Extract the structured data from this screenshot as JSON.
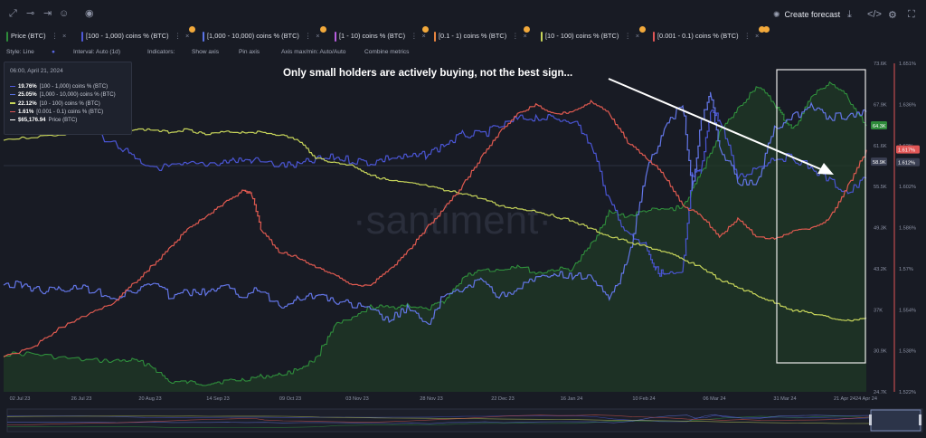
{
  "toolbar_top": {
    "icons": [
      "brush-icon",
      "line-icon",
      "emoji-icon",
      "eye-icon"
    ],
    "create_forecast": "Create forecast",
    "right_icons": [
      "download-icon",
      "code-icon",
      "gear-icon",
      "expand-icon"
    ]
  },
  "metrics": [
    {
      "label": "Price (BTC)",
      "color": "#2e8b3a"
    },
    {
      "label": "[100 - 1,000) coins % (BTC)",
      "color": "#4f59d8"
    },
    {
      "label": "[1,000 - 10,000) coins % (BTC)",
      "color": "#5b74e8"
    },
    {
      "label": "[1 - 10) coins % (BTC)",
      "color": "#b85ee0"
    },
    {
      "label": "[0.1 - 1) coins % (BTC)",
      "color": "#e8853f"
    },
    {
      "label": "[10 - 100) coins % (BTC)",
      "color": "#c8d65a"
    },
    {
      "label": "[0.001 - 0.1) coins % (BTC)",
      "color": "#e05656"
    }
  ],
  "options": {
    "style": "Style: Line",
    "interval": "Interval: Auto (1d)",
    "indicators": "Indicators:",
    "show_axis": "Show axis",
    "pin_axis": "Pin axis",
    "axis_minmax": "Axis max/min: Auto/Auto",
    "combine": "Combine metrics"
  },
  "tooltip": {
    "date": "06:00, April 21, 2024",
    "rows": [
      {
        "value": "19.76%",
        "label": "[100 - 1,000) coins % (BTC)",
        "color": "#4f59d8"
      },
      {
        "value": "25.05%",
        "label": "[1,000 - 10,000) coins % (BTC)",
        "color": "#5b74e8"
      },
      {
        "value": "22.12%",
        "label": "[10 - 100) coins % (BTC)",
        "color": "#c8d65a"
      },
      {
        "value": "1.61%",
        "label": "[0.001 - 0.1) coins % (BTC)",
        "color": "#e05656"
      },
      {
        "value": "$65,176.94",
        "label": "Price (BTC)",
        "color": "#ffffff"
      }
    ]
  },
  "annotation": "Only small holders are actively buying, not the best sign...",
  "watermark": "·santiment·",
  "chart_data": {
    "type": "line",
    "x_labels": [
      "02 Jul 23",
      "26 Jul 23",
      "20 Aug 23",
      "14 Sep 23",
      "09 Oct 23",
      "03 Nov 23",
      "28 Nov 23",
      "22 Dec 23",
      "16 Jan 24",
      "10 Feb 24",
      "06 Mar 24",
      "31 Mar 24",
      "21 Apr 24",
      "24 Apr 24"
    ],
    "price_axis": {
      "ticks": [
        "73.6K",
        "67.9K",
        "61.6K",
        "55.5K",
        "49.3K",
        "43.2K",
        "37K",
        "30.9K",
        "24.7K"
      ],
      "min": 24.7,
      "max": 73.6
    },
    "pct_axis": {
      "ticks": [
        "1.651%",
        "1.636%",
        "1.62%",
        "1.602%",
        "1.586%",
        "1.57%",
        "1.554%",
        "1.538%",
        "1.522%"
      ],
      "min": 1.522,
      "max": 1.651
    },
    "value_badges": [
      {
        "text": "64.3K",
        "axis": "price",
        "value": 64.3,
        "color": "#2e8b3a"
      },
      {
        "text": "58.9K",
        "axis": "price",
        "value": 58.9,
        "color": "#3a3f52"
      },
      {
        "text": "1.617%",
        "axis": "pct",
        "value": 1.617,
        "color": "#e05656"
      },
      {
        "text": "1.612%",
        "axis": "pct",
        "value": 1.612,
        "color": "#3a3f52"
      }
    ],
    "series": [
      {
        "name": "Price (BTC)",
        "color": "#2f8f3c",
        "fill": true,
        "points": [
          [
            0,
            30.3
          ],
          [
            3,
            30.4
          ],
          [
            6,
            29.8
          ],
          [
            9,
            29.4
          ],
          [
            12,
            29.3
          ],
          [
            14,
            29.4
          ],
          [
            16,
            28.7
          ],
          [
            18,
            26.2
          ],
          [
            20,
            26.1
          ],
          [
            22,
            25.9
          ],
          [
            24,
            26.3
          ],
          [
            26,
            26.5
          ],
          [
            28,
            27.0
          ],
          [
            30,
            27.2
          ],
          [
            32,
            28.0
          ],
          [
            34,
            29.6
          ],
          [
            36,
            34.6
          ],
          [
            38,
            35.5
          ],
          [
            40,
            37.4
          ],
          [
            42,
            37.2
          ],
          [
            44,
            37.7
          ],
          [
            46,
            36.9
          ],
          [
            48,
            38.2
          ],
          [
            50,
            41.6
          ],
          [
            52,
            43.0
          ],
          [
            54,
            42.8
          ],
          [
            56,
            43.6
          ],
          [
            58,
            42.3
          ],
          [
            60,
            42.9
          ],
          [
            62,
            43.0
          ],
          [
            64,
            46.7
          ],
          [
            66,
            51.5
          ],
          [
            68,
            50.8
          ],
          [
            70,
            51.7
          ],
          [
            72,
            51.8
          ],
          [
            74,
            52.2
          ],
          [
            76,
            57.3
          ],
          [
            78,
            63.4
          ],
          [
            80,
            66.8
          ],
          [
            82,
            70.3
          ],
          [
            84,
            67.6
          ],
          [
            85,
            65.4
          ],
          [
            86,
            63.7
          ],
          [
            88,
            68.6
          ],
          [
            90,
            70.8
          ],
          [
            92,
            68.4
          ],
          [
            94,
            64.3
          ]
        ]
      },
      {
        "name": "[100 - 1,000) coins % (BTC)",
        "color": "#4a55d4",
        "axis": "pct",
        "points": [
          [
            0,
            1.629
          ],
          [
            3,
            1.628
          ],
          [
            5,
            1.627
          ],
          [
            8,
            1.627
          ],
          [
            10,
            1.624
          ],
          [
            13,
            1.617
          ],
          [
            15,
            1.611
          ],
          [
            18,
            1.61
          ],
          [
            20,
            1.611
          ],
          [
            23,
            1.612
          ],
          [
            25,
            1.613
          ],
          [
            27,
            1.613
          ],
          [
            30,
            1.611
          ],
          [
            32,
            1.611
          ],
          [
            34,
            1.613
          ],
          [
            36,
            1.614
          ],
          [
            38,
            1.613
          ],
          [
            40,
            1.612
          ],
          [
            42,
            1.614
          ],
          [
            44,
            1.614
          ],
          [
            46,
            1.615
          ],
          [
            48,
            1.619
          ],
          [
            50,
            1.623
          ],
          [
            52,
            1.623
          ],
          [
            54,
            1.626
          ],
          [
            56,
            1.629
          ],
          [
            58,
            1.63
          ],
          [
            60,
            1.629
          ],
          [
            62,
            1.629
          ],
          [
            64,
            1.619
          ],
          [
            66,
            1.597
          ],
          [
            68,
            1.584
          ],
          [
            70,
            1.58
          ],
          [
            71,
            1.57
          ],
          [
            72,
            1.568
          ],
          [
            74,
            1.568
          ],
          [
            75,
            1.607
          ],
          [
            76,
            1.608
          ],
          [
            77,
            1.633
          ],
          [
            78,
            1.629
          ],
          [
            80,
            1.606
          ],
          [
            82,
            1.61
          ],
          [
            84,
            1.614
          ],
          [
            86,
            1.614
          ],
          [
            88,
            1.61
          ],
          [
            90,
            1.605
          ],
          [
            92,
            1.6
          ],
          [
            94,
            1.606
          ]
        ]
      },
      {
        "name": "[1,000 - 10,000) coins % (BTC)",
        "color": "#6376e8",
        "axis": "pct",
        "points": [
          [
            0,
            1.564
          ],
          [
            2,
            1.564
          ],
          [
            4,
            1.562
          ],
          [
            6,
            1.562
          ],
          [
            8,
            1.563
          ],
          [
            10,
            1.562
          ],
          [
            12,
            1.559
          ],
          [
            14,
            1.561
          ],
          [
            16,
            1.565
          ],
          [
            18,
            1.56
          ],
          [
            20,
            1.561
          ],
          [
            22,
            1.561
          ],
          [
            24,
            1.563
          ],
          [
            26,
            1.56
          ],
          [
            28,
            1.562
          ],
          [
            30,
            1.556
          ],
          [
            32,
            1.559
          ],
          [
            34,
            1.56
          ],
          [
            36,
            1.558
          ],
          [
            38,
            1.556
          ],
          [
            40,
            1.554
          ],
          [
            42,
            1.55
          ],
          [
            44,
            1.555
          ],
          [
            46,
            1.548
          ],
          [
            48,
            1.56
          ],
          [
            50,
            1.561
          ],
          [
            52,
            1.567
          ],
          [
            54,
            1.559
          ],
          [
            56,
            1.563
          ],
          [
            58,
            1.566
          ],
          [
            60,
            1.568
          ],
          [
            62,
            1.567
          ],
          [
            64,
            1.568
          ],
          [
            66,
            1.557
          ],
          [
            68,
            1.574
          ],
          [
            70,
            1.608
          ],
          [
            72,
            1.626
          ],
          [
            74,
            1.635
          ],
          [
            75,
            1.6
          ],
          [
            76,
            1.628
          ],
          [
            77,
            1.64
          ],
          [
            78,
            1.618
          ],
          [
            80,
            1.605
          ],
          [
            82,
            1.603
          ],
          [
            84,
            1.626
          ],
          [
            86,
            1.63
          ],
          [
            88,
            1.634
          ],
          [
            90,
            1.63
          ],
          [
            92,
            1.63
          ],
          [
            94,
            1.632
          ]
        ]
      },
      {
        "name": "[10 - 100) coins % (BTC)",
        "color": "#c7d55a",
        "axis": "pct",
        "points": [
          [
            0,
            1.621
          ],
          [
            3,
            1.622
          ],
          [
            6,
            1.623
          ],
          [
            9,
            1.624
          ],
          [
            12,
            1.625
          ],
          [
            14,
            1.625
          ],
          [
            16,
            1.625
          ],
          [
            18,
            1.624
          ],
          [
            20,
            1.625
          ],
          [
            22,
            1.623
          ],
          [
            24,
            1.624
          ],
          [
            26,
            1.624
          ],
          [
            28,
            1.624
          ],
          [
            30,
            1.623
          ],
          [
            32,
            1.621
          ],
          [
            34,
            1.614
          ],
          [
            36,
            1.612
          ],
          [
            38,
            1.611
          ],
          [
            40,
            1.607
          ],
          [
            42,
            1.605
          ],
          [
            44,
            1.604
          ],
          [
            46,
            1.603
          ],
          [
            48,
            1.601
          ],
          [
            50,
            1.6
          ],
          [
            52,
            1.598
          ],
          [
            54,
            1.595
          ],
          [
            56,
            1.594
          ],
          [
            58,
            1.593
          ],
          [
            60,
            1.591
          ],
          [
            62,
            1.589
          ],
          [
            64,
            1.586
          ],
          [
            66,
            1.583
          ],
          [
            68,
            1.581
          ],
          [
            70,
            1.579
          ],
          [
            72,
            1.577
          ],
          [
            74,
            1.574
          ],
          [
            76,
            1.571
          ],
          [
            78,
            1.566
          ],
          [
            80,
            1.563
          ],
          [
            82,
            1.56
          ],
          [
            84,
            1.557
          ],
          [
            86,
            1.554
          ],
          [
            88,
            1.553
          ],
          [
            90,
            1.551
          ],
          [
            92,
            1.55
          ],
          [
            94,
            1.551
          ]
        ]
      },
      {
        "name": "[0.001 - 0.1) coins % (BTC)",
        "color": "#e05a50",
        "axis": "pct",
        "points": [
          [
            0,
            1.536
          ],
          [
            3,
            1.539
          ],
          [
            6,
            1.547
          ],
          [
            9,
            1.552
          ],
          [
            12,
            1.557
          ],
          [
            14,
            1.564
          ],
          [
            16,
            1.571
          ],
          [
            18,
            1.578
          ],
          [
            20,
            1.586
          ],
          [
            22,
            1.591
          ],
          [
            24,
            1.596
          ],
          [
            26,
            1.601
          ],
          [
            27,
            1.6
          ],
          [
            28,
            1.586
          ],
          [
            30,
            1.577
          ],
          [
            32,
            1.575
          ],
          [
            34,
            1.571
          ],
          [
            36,
            1.568
          ],
          [
            38,
            1.564
          ],
          [
            40,
            1.564
          ],
          [
            42,
            1.57
          ],
          [
            44,
            1.577
          ],
          [
            46,
            1.586
          ],
          [
            48,
            1.594
          ],
          [
            50,
            1.603
          ],
          [
            52,
            1.614
          ],
          [
            54,
            1.624
          ],
          [
            56,
            1.631
          ],
          [
            58,
            1.635
          ],
          [
            60,
            1.631
          ],
          [
            62,
            1.632
          ],
          [
            64,
            1.636
          ],
          [
            66,
            1.631
          ],
          [
            68,
            1.62
          ],
          [
            70,
            1.614
          ],
          [
            72,
            1.607
          ],
          [
            74,
            1.595
          ],
          [
            76,
            1.591
          ],
          [
            78,
            1.583
          ],
          [
            80,
            1.59
          ],
          [
            82,
            1.583
          ],
          [
            84,
            1.582
          ],
          [
            86,
            1.585
          ],
          [
            88,
            1.586
          ],
          [
            90,
            1.59
          ],
          [
            92,
            1.603
          ],
          [
            94,
            1.617
          ]
        ]
      }
    ]
  }
}
